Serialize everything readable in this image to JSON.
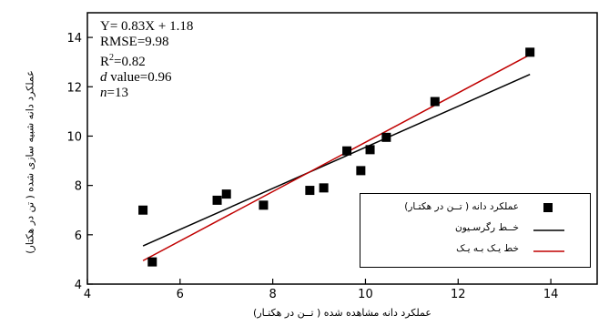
{
  "chart_data": {
    "type": "scatter",
    "xlabel": "عملکرد دانه مشاهده شده ( تــن در هکتـار)",
    "ylabel": "عملکرد دانه شبیه سازی شده ( تن در هکتار)",
    "xlim": [
      4,
      15
    ],
    "ylim": [
      4,
      15
    ],
    "xticks": [
      "4",
      "6",
      "8",
      "10",
      "12",
      "14"
    ],
    "yticks": [
      "4",
      "6",
      "8",
      "10",
      "12",
      "14"
    ],
    "grid": false,
    "legend_position": "bottom-right",
    "annotations": {
      "equation": "Y= 0.83X + 1.18",
      "rmse": "RMSE=9.98",
      "r2_prefix": "R",
      "r2_exp": "2",
      "r2_value": "=0.82",
      "d_symbol": "d",
      "d_value": " value=0.96",
      "n_symbol": "n",
      "n_value": "=13"
    },
    "series": [
      {
        "name": "عملکرد دانه ( تــن در هکتـار)",
        "kind": "scatter",
        "color": "#000000",
        "points": [
          [
            5.2,
            7.0
          ],
          [
            5.4,
            4.9
          ],
          [
            6.8,
            7.4
          ],
          [
            7.0,
            7.65
          ],
          [
            7.8,
            7.2
          ],
          [
            8.8,
            7.8
          ],
          [
            9.1,
            7.9
          ],
          [
            9.6,
            9.4
          ],
          [
            9.9,
            8.6
          ],
          [
            10.1,
            9.45
          ],
          [
            10.45,
            9.95
          ],
          [
            11.5,
            11.4
          ],
          [
            13.55,
            13.4
          ]
        ]
      },
      {
        "name": "خــط رگرسـیون",
        "kind": "line",
        "color": "#000000",
        "points": [
          [
            5.2,
            5.55
          ],
          [
            13.55,
            12.5
          ]
        ]
      },
      {
        "name": "خط یـک بـه یـک",
        "kind": "line",
        "color": "#c00000",
        "points": [
          [
            5.2,
            4.95
          ],
          [
            13.55,
            13.3
          ]
        ]
      }
    ]
  }
}
